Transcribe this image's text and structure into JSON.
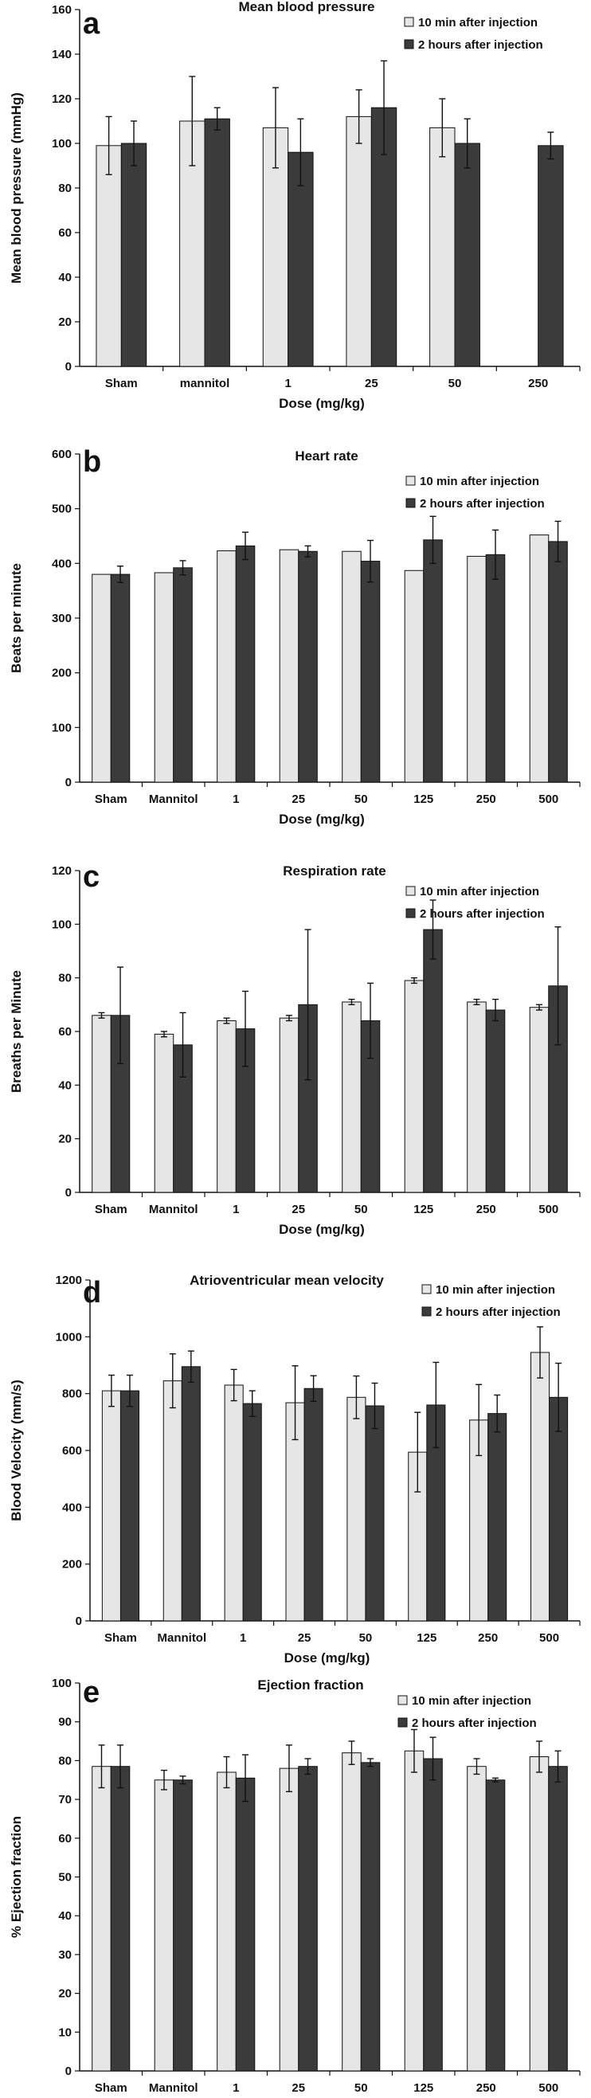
{
  "colors": {
    "light_bar": "#e6e6e6",
    "dark_bar": "#3b3b3b",
    "axis": "#111111"
  },
  "chart_data": [
    {
      "panel": "a",
      "type": "bar",
      "title": "Mean blood pressure",
      "xlabel": "Dose (mg/kg)",
      "ylabel": "Mean  blood  pressure (mmHg)",
      "ylim": [
        0,
        160
      ],
      "yticks": [
        0,
        20,
        40,
        60,
        80,
        100,
        120,
        140,
        160
      ],
      "grid": false,
      "legend_position": "top-right",
      "categories": [
        "Sham",
        "mannitol",
        "1",
        "25",
        "50",
        "250"
      ],
      "series": [
        {
          "name": "10 min after injection",
          "values": [
            99,
            110,
            107,
            112,
            107,
            null
          ],
          "errors": [
            13,
            20,
            18,
            12,
            13,
            null
          ]
        },
        {
          "name": "2 hours after injection",
          "values": [
            100,
            111,
            96,
            116,
            100,
            99
          ],
          "errors": [
            10,
            5,
            15,
            21,
            11,
            6
          ]
        }
      ]
    },
    {
      "panel": "b",
      "type": "bar",
      "title": "Heart rate",
      "xlabel": "Dose (mg/kg)",
      "ylabel": "Beats per minute",
      "ylim": [
        0,
        600
      ],
      "yticks": [
        0,
        100,
        200,
        300,
        400,
        500,
        600
      ],
      "grid": false,
      "legend_position": "top-right",
      "categories": [
        "Sham",
        "Mannitol",
        "1",
        "25",
        "50",
        "125",
        "250",
        "500"
      ],
      "series": [
        {
          "name": "10 min after injection",
          "values": [
            380,
            383,
            423,
            425,
            422,
            387,
            413,
            452
          ],
          "errors": [
            0,
            0,
            0,
            0,
            0,
            0,
            0,
            0
          ]
        },
        {
          "name": "2 hours after injection",
          "values": [
            380,
            392,
            432,
            422,
            404,
            443,
            416,
            440
          ],
          "errors": [
            15,
            13,
            25,
            10,
            38,
            43,
            45,
            37
          ]
        }
      ]
    },
    {
      "panel": "c",
      "type": "bar",
      "title": "Respiration rate",
      "xlabel": "Dose (mg/kg)",
      "ylabel": "Breaths per Minute",
      "ylim": [
        0,
        120
      ],
      "yticks": [
        0,
        20,
        40,
        60,
        80,
        100,
        120
      ],
      "grid": false,
      "legend_position": "top-right",
      "categories": [
        "Sham",
        "Mannitol",
        "1",
        "25",
        "50",
        "125",
        "250",
        "500"
      ],
      "series": [
        {
          "name": "10 min after injection",
          "values": [
            66,
            59,
            64,
            65,
            71,
            79,
            71,
            69
          ],
          "errors": [
            1,
            1,
            1,
            1,
            1,
            1,
            1,
            1
          ]
        },
        {
          "name": "2 hours after injection",
          "values": [
            66,
            55,
            61,
            70,
            64,
            98,
            68,
            77
          ],
          "errors": [
            18,
            12,
            14,
            28,
            14,
            11,
            4,
            22
          ]
        }
      ]
    },
    {
      "panel": "d",
      "type": "bar",
      "title": "Atrioventricular mean velocity",
      "xlabel": "Dose (mg/kg)",
      "ylabel": "Blood Velocity (mm/s)",
      "ylim": [
        0,
        1200
      ],
      "yticks": [
        0,
        200,
        400,
        600,
        800,
        1000,
        1200
      ],
      "grid": false,
      "legend_position": "top-right",
      "categories": [
        "Sham",
        "Mannitol",
        "1",
        "25",
        "50",
        "125",
        "250",
        "500"
      ],
      "series": [
        {
          "name": "10 min after injection",
          "values": [
            810,
            845,
            830,
            768,
            787,
            594,
            707,
            945
          ],
          "errors": [
            55,
            95,
            55,
            130,
            75,
            140,
            125,
            90
          ]
        },
        {
          "name": "2 hours after injection",
          "values": [
            810,
            895,
            765,
            818,
            757,
            760,
            730,
            787
          ],
          "errors": [
            55,
            55,
            45,
            45,
            80,
            150,
            65,
            120
          ]
        }
      ]
    },
    {
      "panel": "e",
      "type": "bar",
      "title": "Ejection fraction",
      "xlabel": "Dose (mg/kg)",
      "ylabel": "% Ejection fraction",
      "ylim": [
        0,
        100
      ],
      "yticks": [
        0,
        10,
        20,
        30,
        40,
        50,
        60,
        70,
        80,
        90,
        100
      ],
      "grid": false,
      "legend_position": "top-right",
      "categories": [
        "Sham",
        "Mannitol",
        "1",
        "25",
        "50",
        "125",
        "250",
        "500"
      ],
      "series": [
        {
          "name": "10 min after injection",
          "values": [
            78.5,
            75,
            77,
            78,
            82,
            82.5,
            78.5,
            81
          ],
          "errors": [
            5.5,
            2.5,
            4,
            6,
            3,
            5.5,
            2,
            4
          ]
        },
        {
          "name": "2 hours after injection",
          "values": [
            78.5,
            75,
            75.5,
            78.5,
            79.5,
            80.5,
            75,
            78.5
          ],
          "errors": [
            5.5,
            1,
            6,
            2,
            1,
            5.5,
            0.5,
            4
          ]
        }
      ]
    }
  ]
}
